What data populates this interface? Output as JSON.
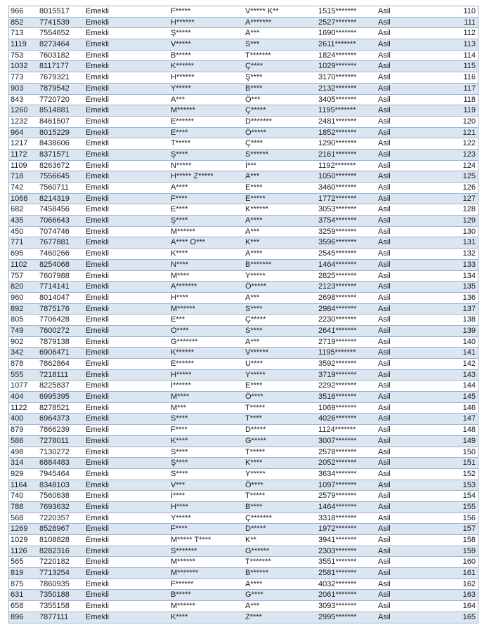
{
  "table": {
    "row_colors": {
      "odd": "#ffffff",
      "even": "#dce6f1",
      "border": "#95b3d7"
    },
    "rows": [
      [
        "966",
        "8015517",
        "Emekli",
        "F*****",
        "V***** K**",
        "1515*******",
        "Asil",
        "110"
      ],
      [
        "852",
        "7741539",
        "Emekli",
        "H******",
        "A*******",
        "2527*******",
        "Asil",
        "111"
      ],
      [
        "713",
        "7554652",
        "Emekli",
        "Ş*****",
        "A***",
        "1690*******",
        "Asil",
        "112"
      ],
      [
        "1119",
        "8273464",
        "Emekli",
        "V*****",
        "S***",
        "2611*******",
        "Asil",
        "113"
      ],
      [
        "753",
        "7603182",
        "Emekli",
        "B*****",
        "T*******",
        "1824*******",
        "Asil",
        "114"
      ],
      [
        "1032",
        "8117177",
        "Emekli",
        "K******",
        "Ç****",
        "1029*******",
        "Asil",
        "115"
      ],
      [
        "773",
        "7679321",
        "Emekli",
        "H******",
        "Ş****",
        "3170*******",
        "Asil",
        "116"
      ],
      [
        "903",
        "7879542",
        "Emekli",
        "Y*****",
        "B****",
        "2132*******",
        "Asil",
        "117"
      ],
      [
        "843",
        "7720720",
        "Emekli",
        "A***",
        "Ö***",
        "3405*******",
        "Asil",
        "118"
      ],
      [
        "1260",
        "8514881",
        "Emekli",
        "M******",
        "Ç*****",
        "1195*******",
        "Asil",
        "119"
      ],
      [
        "1232",
        "8461507",
        "Emekli",
        "E******",
        "D*******",
        "2481*******",
        "Asil",
        "120"
      ],
      [
        "964",
        "8015229",
        "Emekli",
        "E****",
        "Ö*****",
        "1852*******",
        "Asil",
        "121"
      ],
      [
        "1217",
        "8438606",
        "Emekli",
        "T*****",
        "Ç****",
        "1290*******",
        "Asil",
        "122"
      ],
      [
        "1172",
        "8371571",
        "Emekli",
        "Ş****",
        "S******",
        "2161*******",
        "Asil",
        "123"
      ],
      [
        "1109",
        "8263672",
        "Emekli",
        "N*****",
        "İ***",
        "1192*******",
        "Asil",
        "124"
      ],
      [
        "718",
        "7556645",
        "Emekli",
        "H***** Z*****",
        "A***",
        "1050*******",
        "Asil",
        "125"
      ],
      [
        "742",
        "7560711",
        "Emekli",
        "A****",
        "E****",
        "3460*******",
        "Asil",
        "126"
      ],
      [
        "1068",
        "8214319",
        "Emekli",
        "F****",
        "E*****",
        "1772*******",
        "Asil",
        "127"
      ],
      [
        "682",
        "7458456",
        "Emekli",
        "E****",
        "K******",
        "3053*******",
        "Asil",
        "128"
      ],
      [
        "435",
        "7066643",
        "Emekli",
        "Ş****",
        "A****",
        "3754*******",
        "Asil",
        "129"
      ],
      [
        "450",
        "7074746",
        "Emekli",
        "M******",
        "A***",
        "3259*******",
        "Asil",
        "130"
      ],
      [
        "771",
        "7677881",
        "Emekli",
        "A**** O***",
        "K***",
        "3596*******",
        "Asil",
        "131"
      ],
      [
        "695",
        "7460266",
        "Emekli",
        "K****",
        "A****",
        "2545*******",
        "Asil",
        "132"
      ],
      [
        "1102",
        "8254068",
        "Emekli",
        "N****",
        "B*******",
        "1464*******",
        "Asil",
        "133"
      ],
      [
        "757",
        "7607988",
        "Emekli",
        "M****",
        "Y*****",
        "2825*******",
        "Asil",
        "134"
      ],
      [
        "820",
        "7714141",
        "Emekli",
        "A*******",
        "Ö*****",
        "2123*******",
        "Asil",
        "135"
      ],
      [
        "960",
        "8014047",
        "Emekli",
        "H****",
        "A***",
        "2698*******",
        "Asil",
        "136"
      ],
      [
        "892",
        "7875176",
        "Emekli",
        "M******",
        "S****",
        "2984*******",
        "Asil",
        "137"
      ],
      [
        "805",
        "7706428",
        "Emekli",
        "E***",
        "Ç*****",
        "2230*******",
        "Asil",
        "138"
      ],
      [
        "749",
        "7600272",
        "Emekli",
        "O****",
        "S****",
        "2641*******",
        "Asil",
        "139"
      ],
      [
        "902",
        "7879138",
        "Emekli",
        "G*******",
        "A***",
        "2719*******",
        "Asil",
        "140"
      ],
      [
        "342",
        "6906471",
        "Emekli",
        "K******",
        "V******",
        "1195*******",
        "Asil",
        "141"
      ],
      [
        "878",
        "7862864",
        "Emekli",
        "E******",
        "U****",
        "3592*******",
        "Asil",
        "142"
      ],
      [
        "555",
        "7218111",
        "Emekli",
        "H*****",
        "Y*****",
        "3719*******",
        "Asil",
        "143"
      ],
      [
        "1077",
        "8225837",
        "Emekli",
        "İ******",
        "E****",
        "2292*******",
        "Asil",
        "144"
      ],
      [
        "404",
        "6995395",
        "Emekli",
        "M****",
        "Ö****",
        "3516*******",
        "Asil",
        "145"
      ],
      [
        "1122",
        "8278521",
        "Emekli",
        "M***",
        "T*****",
        "1069*******",
        "Asil",
        "146"
      ],
      [
        "400",
        "6964373",
        "Emekli",
        "S****",
        "T****",
        "4026*******",
        "Asil",
        "147"
      ],
      [
        "879",
        "7866239",
        "Emekli",
        "F****",
        "D*****",
        "1124*******",
        "Asil",
        "148"
      ],
      [
        "586",
        "7278011",
        "Emekli",
        "K****",
        "G*****",
        "3007*******",
        "Asil",
        "149"
      ],
      [
        "498",
        "7130272",
        "Emekli",
        "S****",
        "T*****",
        "2578*******",
        "Asil",
        "150"
      ],
      [
        "314",
        "6884483",
        "Emekli",
        "Ş****",
        "K****",
        "2052*******",
        "Asil",
        "151"
      ],
      [
        "929",
        "7945464",
        "Emekli",
        "S****",
        "Y*****",
        "3634*******",
        "Asil",
        "152"
      ],
      [
        "1164",
        "8348103",
        "Emekli",
        "V***",
        "Ö****",
        "1097*******",
        "Asil",
        "153"
      ],
      [
        "740",
        "7560638",
        "Emekli",
        "İ****",
        "T*****",
        "2579*******",
        "Asil",
        "154"
      ],
      [
        "788",
        "7693632",
        "Emekli",
        "H****",
        "B****",
        "1464*******",
        "Asil",
        "155"
      ],
      [
        "568",
        "7220357",
        "Emekli",
        "Y*****",
        "Ç*******",
        "3318*******",
        "Asil",
        "156"
      ],
      [
        "1269",
        "8528967",
        "Emekli",
        "F****",
        "D*****",
        "1972*******",
        "Asil",
        "157"
      ],
      [
        "1029",
        "8108828",
        "Emekli",
        "M***** T****",
        "K**",
        "3941*******",
        "Asil",
        "158"
      ],
      [
        "1126",
        "8282316",
        "Emekli",
        "S*******",
        "G******",
        "2303*******",
        "Asil",
        "159"
      ],
      [
        "565",
        "7220182",
        "Emekli",
        "M******",
        "T*******",
        "3551*******",
        "Asil",
        "160"
      ],
      [
        "819",
        "7713254",
        "Emekli",
        "M*******",
        "B******",
        "2581*******",
        "Asil",
        "161"
      ],
      [
        "875",
        "7860935",
        "Emekli",
        "F******",
        "A****",
        "4032*******",
        "Asil",
        "162"
      ],
      [
        "631",
        "7350188",
        "Emekli",
        "B*****",
        "G****",
        "2061*******",
        "Asil",
        "163"
      ],
      [
        "658",
        "7355158",
        "Emekli",
        "M******",
        "A***",
        "3093*******",
        "Asil",
        "164"
      ],
      [
        "896",
        "7877111",
        "Emekli",
        "K****",
        "Z****",
        "2995*******",
        "Asil",
        "165"
      ]
    ]
  }
}
